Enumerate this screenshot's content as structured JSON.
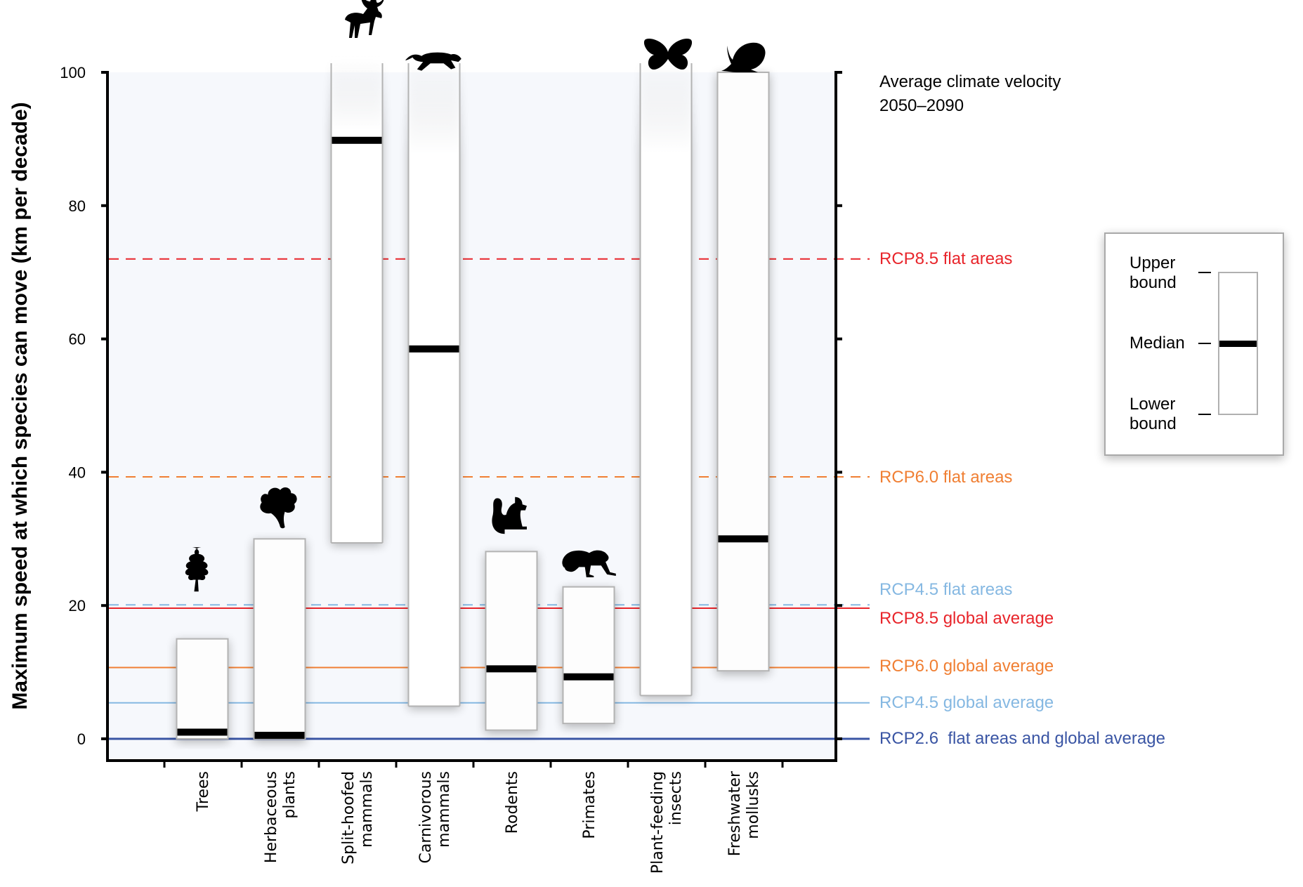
{
  "chart_data": {
    "type": "box-range",
    "title": "",
    "ylabel": "Maximum speed at which species can move (km per decade)",
    "xlabel": "",
    "ylim": [
      0,
      100
    ],
    "yticks": [
      0,
      20,
      40,
      60,
      80,
      100
    ],
    "grid": false,
    "annotation": {
      "line1": "Average climate velocity",
      "line2": "2050–2090"
    },
    "categories": [
      {
        "lines": [
          "Trees"
        ],
        "icon": "tree-icon",
        "lower": 0,
        "median": 1,
        "upper": 15,
        "open_top": false
      },
      {
        "lines": [
          "Herbaceous",
          "plants"
        ],
        "icon": "leaf-icon",
        "lower": 0,
        "median": 0.4,
        "upper": 30,
        "open_top": false
      },
      {
        "lines": [
          "Split-hoofed",
          "mammals"
        ],
        "icon": "moose-icon",
        "lower": 29.4,
        "median": 89.8,
        "upper": 100,
        "open_top": true
      },
      {
        "lines": [
          "Carnivorous",
          "mammals"
        ],
        "icon": "big-cat-icon",
        "lower": 4.9,
        "median": 58.5,
        "upper": 100,
        "open_top": true
      },
      {
        "lines": [
          "Rodents"
        ],
        "icon": "squirrel-icon",
        "lower": 1.3,
        "median": 10.5,
        "upper": 28.1,
        "open_top": false
      },
      {
        "lines": [
          "Primates"
        ],
        "icon": "monkey-icon",
        "lower": 2.3,
        "median": 9.3,
        "upper": 22.8,
        "open_top": false
      },
      {
        "lines": [
          "Plant-feeding",
          "insects"
        ],
        "icon": "butterfly-icon",
        "lower": 6.5,
        "median": null,
        "upper": 100,
        "open_top": true
      },
      {
        "lines": [
          "Freshwater",
          "mollusks"
        ],
        "icon": "snail-icon",
        "lower": 10.2,
        "median": 30,
        "upper": 100,
        "open_top": false
      }
    ],
    "reference_lines": [
      {
        "label": "RCP8.5 flat areas",
        "value": 72,
        "style": "dashed",
        "color": "#e8252b"
      },
      {
        "label": "RCP6.0 flat areas",
        "value": 39.3,
        "style": "dashed",
        "color": "#f07f33"
      },
      {
        "label": "RCP4.5 flat areas",
        "value": 20.1,
        "style": "dashed",
        "color": "#85b8e2"
      },
      {
        "label": "RCP8.5 global average",
        "value": 19.6,
        "style": "solid",
        "color": "#e8252b"
      },
      {
        "label": "RCP6.0 global average",
        "value": 10.7,
        "style": "solid",
        "color": "#f07f33"
      },
      {
        "label": "RCP4.5 global average",
        "value": 5.4,
        "style": "solid",
        "color": "#85b8e2"
      },
      {
        "label": "RCP2.6  flat areas and global average",
        "value": 0,
        "style": "solid",
        "color": "#3a55a4"
      }
    ],
    "legend": {
      "placement": "right",
      "upper_label": [
        "Upper",
        "bound"
      ],
      "median_label": "Median",
      "lower_label": [
        "Lower",
        "bound"
      ]
    }
  }
}
